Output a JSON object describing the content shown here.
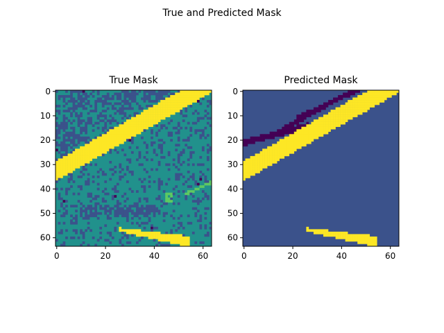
{
  "suptitle": "True and Predicted Mask",
  "chart_data": [
    {
      "type": "heatmap",
      "title": "True Mask",
      "grid_size": [
        64,
        64
      ],
      "xlim": [
        0,
        63
      ],
      "ylim": [
        63,
        0
      ],
      "xticks": [
        "0",
        "20",
        "40",
        "60"
      ],
      "yticks": [
        "0",
        "10",
        "20",
        "30",
        "40",
        "50",
        "60"
      ],
      "colormap": "viridis",
      "class_colors": [
        "#440154",
        "#3b528b",
        "#21918c",
        "#5ec962",
        "#fde725"
      ],
      "background_class": 2,
      "regions": [
        {
          "class": 4,
          "shape": "diagonal-band",
          "from": [
            0,
            36
          ],
          "to": [
            63,
            0
          ]
        },
        {
          "class": 4,
          "shape": "lower-band",
          "from": [
            26,
            56
          ],
          "to": [
            54,
            63
          ]
        },
        {
          "class": 1,
          "shape": "noisy-patches"
        },
        {
          "class": 3,
          "shape": "small-streak",
          "from": [
            53,
            42
          ],
          "to": [
            63,
            38
          ]
        }
      ]
    },
    {
      "type": "heatmap",
      "title": "Predicted Mask",
      "grid_size": [
        64,
        64
      ],
      "xlim": [
        0,
        63
      ],
      "ylim": [
        63,
        0
      ],
      "xticks": [
        "0",
        "20",
        "40",
        "60"
      ],
      "yticks": [
        "0",
        "10",
        "20",
        "30",
        "40",
        "50",
        "60"
      ],
      "colormap": "viridis",
      "class_colors": [
        "#440154",
        "#3b528b",
        "#21918c",
        "#5ec962",
        "#fde725"
      ],
      "background_class": 1,
      "regions": [
        {
          "class": 4,
          "shape": "diagonal-band",
          "from": [
            0,
            36
          ],
          "to": [
            63,
            0
          ]
        },
        {
          "class": 4,
          "shape": "lower-band",
          "from": [
            26,
            56
          ],
          "to": [
            54,
            63
          ]
        },
        {
          "class": 0,
          "shape": "dark-streaks",
          "from": [
            0,
            21
          ],
          "to": [
            50,
            0
          ]
        }
      ]
    }
  ]
}
